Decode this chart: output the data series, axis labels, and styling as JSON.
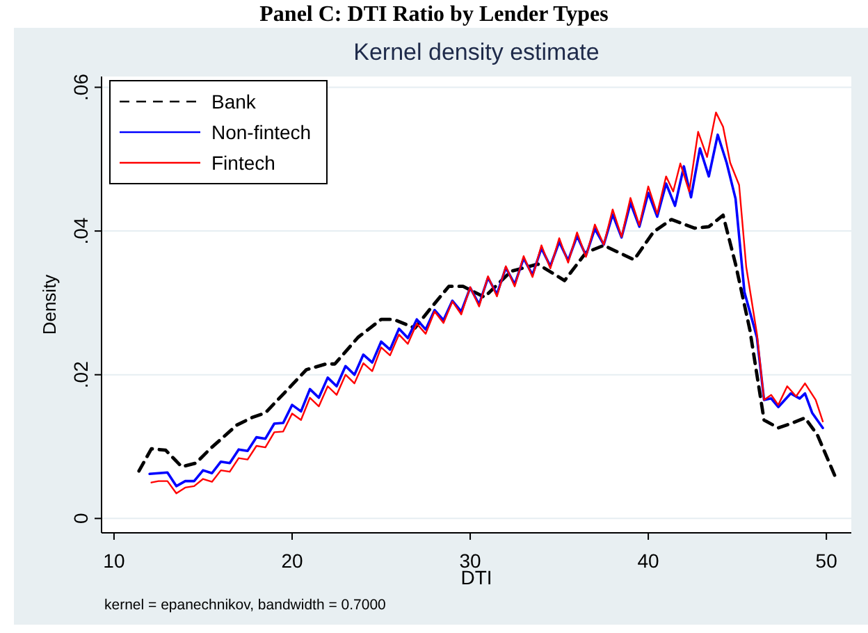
{
  "chart_data": {
    "type": "line",
    "title": "Panel C: DTI Ratio by Lender Types",
    "subtitle": "Kernel density estimate",
    "xlabel": "DTI",
    "ylabel": "Density",
    "annotations": [
      "kernel = epanechnikov, bandwidth = 0.7000"
    ],
    "xlim": [
      9.3,
      51.4
    ],
    "xticks": [
      10,
      20,
      30,
      40,
      50
    ],
    "ylim": [
      -0.002,
      0.0615
    ],
    "yticks": [
      0,
      {
        "value": 0.02,
        "label": ".02"
      },
      {
        "value": 0.04,
        "label": ".04"
      },
      {
        "value": 0.06,
        "label": ".06"
      }
    ],
    "grid": "y",
    "legend": "top left",
    "marker": "none",
    "series": [
      {
        "name": "Bank",
        "color": "#000000",
        "line_style": "dashed",
        "x": [
          11.4,
          12.1,
          12.9,
          13.8,
          14.6,
          15.4,
          16.9,
          17.8,
          18.5,
          20,
          20.8,
          21.9,
          22.4,
          23.7,
          25,
          25.7,
          26.9,
          27.7,
          28.8,
          29.6,
          30.8,
          32.3,
          33.8,
          35.3,
          36.5,
          37.5,
          39.2,
          40.3,
          41.3,
          42.6,
          43.4,
          44.2,
          44.9,
          45.7,
          46.5,
          47.3,
          48,
          48.8,
          49.5,
          50.5
        ],
        "values": [
          0.0066,
          0.0097,
          0.0095,
          0.0072,
          0.0077,
          0.0097,
          0.013,
          0.0141,
          0.0147,
          0.0186,
          0.0207,
          0.0215,
          0.0215,
          0.0252,
          0.0277,
          0.0277,
          0.0265,
          0.029,
          0.0323,
          0.0323,
          0.0308,
          0.0344,
          0.0354,
          0.0331,
          0.037,
          0.038,
          0.036,
          0.0399,
          0.0416,
          0.0404,
          0.0406,
          0.0422,
          0.0354,
          0.0263,
          0.0137,
          0.0126,
          0.0132,
          0.014,
          0.0116,
          0.0058
        ]
      },
      {
        "name": "Non-fintech",
        "color": "#0000ff",
        "line_style": "solid",
        "x": [
          12,
          12.5,
          13,
          13.5,
          14,
          14.5,
          15,
          15.5,
          16,
          16.5,
          17,
          17.5,
          18,
          18.5,
          19,
          19.5,
          20,
          20.5,
          21,
          21.5,
          22,
          22.5,
          23,
          23.5,
          24,
          24.5,
          25,
          25.5,
          26,
          26.5,
          27,
          27.5,
          28,
          28.5,
          29,
          29.5,
          30,
          30.5,
          31,
          31.5,
          32,
          32.5,
          33,
          33.5,
          34,
          34.5,
          35,
          35.5,
          36,
          36.5,
          37,
          37.5,
          38,
          38.5,
          39,
          39.5,
          40,
          40.5,
          41,
          41.5,
          42,
          42.4,
          42.9,
          43.4,
          43.9,
          44.4,
          44.9,
          45.4,
          46.1,
          46.5,
          46.9,
          47.3,
          48,
          48.5,
          48.8,
          49.2,
          49.8
        ],
        "values": [
          0.0062,
          0.0063,
          0.0064,
          0.0045,
          0.0052,
          0.0052,
          0.0067,
          0.0063,
          0.0079,
          0.0077,
          0.0096,
          0.0094,
          0.0113,
          0.0111,
          0.0132,
          0.0133,
          0.0158,
          0.0149,
          0.018,
          0.0168,
          0.0196,
          0.0184,
          0.0212,
          0.02,
          0.0228,
          0.0217,
          0.0246,
          0.0235,
          0.0264,
          0.0251,
          0.0277,
          0.0263,
          0.029,
          0.0276,
          0.0303,
          0.0288,
          0.0321,
          0.0298,
          0.0335,
          0.0312,
          0.0349,
          0.0326,
          0.0362,
          0.0339,
          0.0376,
          0.0351,
          0.0385,
          0.0359,
          0.0393,
          0.0366,
          0.0403,
          0.0381,
          0.0423,
          0.0391,
          0.0439,
          0.0406,
          0.0453,
          0.042,
          0.0466,
          0.0435,
          0.049,
          0.0447,
          0.0515,
          0.0476,
          0.0534,
          0.0495,
          0.0445,
          0.0315,
          0.0252,
          0.0165,
          0.0167,
          0.0155,
          0.0174,
          0.0167,
          0.0174,
          0.0147,
          0.0126
        ]
      },
      {
        "name": "Fintech",
        "color": "#ff0000",
        "line_style": "solid",
        "x": [
          12.1,
          12.5,
          13,
          13.5,
          14,
          14.5,
          15,
          15.5,
          16,
          16.5,
          17,
          17.5,
          18,
          18.5,
          19,
          19.5,
          20,
          20.5,
          21,
          21.5,
          22,
          22.5,
          23,
          23.5,
          24,
          24.5,
          25,
          25.5,
          26,
          26.5,
          27,
          27.5,
          28,
          28.5,
          29,
          29.5,
          30,
          30.5,
          31,
          31.5,
          32,
          32.5,
          33,
          33.5,
          34,
          34.5,
          35,
          35.5,
          36,
          36.5,
          37,
          37.5,
          38,
          38.5,
          39,
          39.5,
          40,
          40.5,
          41,
          41.4,
          41.8,
          42.3,
          42.8,
          43.3,
          43.8,
          44.2,
          44.6,
          45.1,
          45.5,
          46.1,
          46.5,
          46.9,
          47.3,
          47.8,
          48.3,
          48.8,
          49.4,
          49.8
        ],
        "values": [
          0.005,
          0.0052,
          0.0052,
          0.0035,
          0.0043,
          0.0045,
          0.0055,
          0.0051,
          0.0067,
          0.0065,
          0.0084,
          0.0082,
          0.0101,
          0.0099,
          0.012,
          0.0121,
          0.0146,
          0.0137,
          0.0168,
          0.0156,
          0.0184,
          0.0172,
          0.02,
          0.0188,
          0.0216,
          0.0205,
          0.0238,
          0.0227,
          0.0256,
          0.0243,
          0.0271,
          0.0257,
          0.0288,
          0.0272,
          0.0302,
          0.0284,
          0.0322,
          0.0295,
          0.0337,
          0.0309,
          0.0351,
          0.0323,
          0.0365,
          0.0336,
          0.038,
          0.0348,
          0.039,
          0.0356,
          0.0398,
          0.0364,
          0.0409,
          0.0381,
          0.043,
          0.0392,
          0.0446,
          0.0408,
          0.0462,
          0.0424,
          0.0476,
          0.0455,
          0.0494,
          0.0455,
          0.0538,
          0.0503,
          0.0565,
          0.0545,
          0.0495,
          0.0464,
          0.035,
          0.0257,
          0.0165,
          0.0172,
          0.0158,
          0.0184,
          0.017,
          0.0188,
          0.0165,
          0.0135
        ]
      }
    ]
  }
}
